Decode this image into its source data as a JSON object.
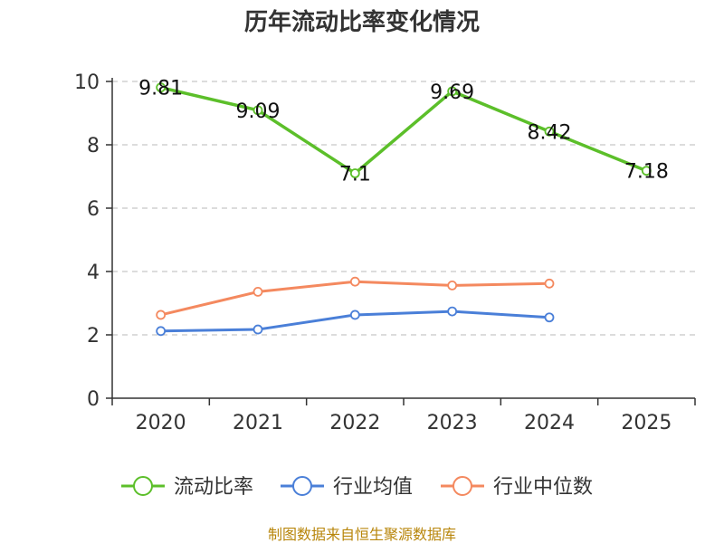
{
  "chart_data": {
    "type": "line",
    "title": "历年流动比率变化情况",
    "categories": [
      "2020",
      "2021",
      "2022",
      "2023",
      "2024",
      "2025"
    ],
    "ylim": [
      0,
      10
    ],
    "yticks": [
      0,
      2,
      4,
      6,
      8,
      10
    ],
    "grid": true,
    "legend_position": "bottom",
    "series": [
      {
        "name": "流动比率",
        "color": "#5cbf2a",
        "values": [
          9.81,
          9.09,
          7.1,
          9.69,
          8.42,
          7.18
        ],
        "labels": [
          "9.81",
          "9.09",
          "7.1",
          "9.69",
          "8.42",
          "7.18"
        ]
      },
      {
        "name": "行业均值",
        "color": "#4a7fd8",
        "values": [
          2.12,
          2.17,
          2.63,
          2.74,
          2.55,
          null
        ]
      },
      {
        "name": "行业中位数",
        "color": "#f4895f",
        "values": [
          2.63,
          3.36,
          3.68,
          3.56,
          3.62,
          null
        ]
      }
    ],
    "source": "制图数据来自恒生聚源数据库"
  }
}
